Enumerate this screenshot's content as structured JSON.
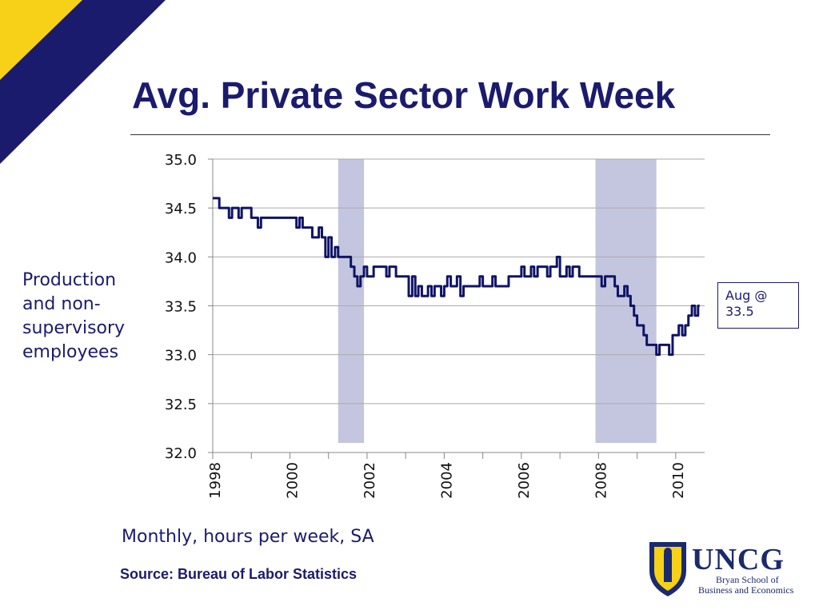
{
  "slide": {
    "title": "Avg. Private Sector Work Week",
    "side_label": "Production and non-supervisory employees",
    "subtitle": "Monthly, hours per week, SA",
    "source": "Source:  Bureau of Labor Statistics",
    "callout": "Aug @ 33.5"
  },
  "logo": {
    "name": "UNCG",
    "line1": "Bryan School of",
    "line2": "Business and Economics"
  },
  "colors": {
    "title": "#1b1b6e",
    "line": "#0f1466",
    "recession_band": "#c4c6df",
    "corner_navy": "#1b1b6e",
    "corner_gold": "#f7d117",
    "grid": "#aaaaaa"
  },
  "chart_data": {
    "type": "line",
    "title": "",
    "xlabel": "",
    "ylabel": "",
    "ylim": [
      32.0,
      35.0
    ],
    "yticks": [
      "32.0",
      "32.5",
      "33.0",
      "33.5",
      "34.0",
      "34.5",
      "35.0"
    ],
    "xlim": [
      1998.0,
      2010.75
    ],
    "xticks": [
      "1998",
      "2000",
      "2002",
      "2004",
      "2006",
      "2008",
      "2010"
    ],
    "grid": true,
    "recession_bands": [
      {
        "start": 2001.25,
        "end": 2001.92
      },
      {
        "start": 2007.92,
        "end": 2009.5
      }
    ],
    "series": [
      {
        "x": [
          1998.0,
          1998.08,
          1998.17,
          1998.25,
          1998.33,
          1998.42,
          1998.5,
          1998.58,
          1998.67,
          1998.75,
          1998.83,
          1998.92,
          1999.0,
          1999.08,
          1999.17,
          1999.25,
          1999.33,
          1999.42,
          1999.5,
          1999.58,
          1999.67,
          1999.75,
          1999.83,
          1999.92,
          2000.0,
          2000.08,
          2000.17,
          2000.25,
          2000.33,
          2000.42,
          2000.5,
          2000.58,
          2000.67,
          2000.75,
          2000.83,
          2000.92,
          2001.0,
          2001.08,
          2001.17,
          2001.25,
          2001.33,
          2001.42,
          2001.5,
          2001.58,
          2001.67,
          2001.75,
          2001.83,
          2001.92,
          2002.0,
          2002.08,
          2002.17,
          2002.25,
          2002.33,
          2002.42,
          2002.5,
          2002.58,
          2002.67,
          2002.75,
          2002.83,
          2002.92,
          2003.0,
          2003.08,
          2003.17,
          2003.25,
          2003.33,
          2003.42,
          2003.5,
          2003.58,
          2003.67,
          2003.75,
          2003.83,
          2003.92,
          2004.0,
          2004.08,
          2004.17,
          2004.25,
          2004.33,
          2004.42,
          2004.5,
          2004.58,
          2004.67,
          2004.75,
          2004.83,
          2004.92,
          2005.0,
          2005.08,
          2005.17,
          2005.25,
          2005.33,
          2005.42,
          2005.5,
          2005.58,
          2005.67,
          2005.75,
          2005.83,
          2005.92,
          2006.0,
          2006.08,
          2006.17,
          2006.25,
          2006.33,
          2006.42,
          2006.5,
          2006.58,
          2006.67,
          2006.75,
          2006.83,
          2006.92,
          2007.0,
          2007.08,
          2007.17,
          2007.25,
          2007.33,
          2007.42,
          2007.5,
          2007.58,
          2007.67,
          2007.75,
          2007.83,
          2007.92,
          2008.0,
          2008.08,
          2008.17,
          2008.25,
          2008.33,
          2008.42,
          2008.5,
          2008.58,
          2008.67,
          2008.75,
          2008.83,
          2008.92,
          2009.0,
          2009.08,
          2009.17,
          2009.25,
          2009.33,
          2009.42,
          2009.5,
          2009.58,
          2009.67,
          2009.75,
          2009.83,
          2009.92,
          2010.0,
          2010.08,
          2010.17,
          2010.25,
          2010.33,
          2010.42,
          2010.5,
          2010.58
        ],
        "values": [
          34.6,
          34.6,
          34.5,
          34.5,
          34.5,
          34.4,
          34.5,
          34.5,
          34.4,
          34.5,
          34.5,
          34.5,
          34.4,
          34.4,
          34.3,
          34.4,
          34.4,
          34.4,
          34.4,
          34.4,
          34.4,
          34.4,
          34.4,
          34.4,
          34.4,
          34.4,
          34.3,
          34.4,
          34.3,
          34.3,
          34.3,
          34.2,
          34.2,
          34.3,
          34.2,
          34.0,
          34.2,
          34.0,
          34.1,
          34.0,
          34.0,
          34.0,
          34.0,
          33.9,
          33.8,
          33.7,
          33.8,
          33.9,
          33.8,
          33.8,
          33.9,
          33.9,
          33.9,
          33.9,
          33.8,
          33.9,
          33.9,
          33.8,
          33.8,
          33.8,
          33.8,
          33.6,
          33.8,
          33.6,
          33.7,
          33.6,
          33.6,
          33.7,
          33.6,
          33.7,
          33.7,
          33.6,
          33.7,
          33.8,
          33.7,
          33.7,
          33.8,
          33.6,
          33.7,
          33.7,
          33.7,
          33.7,
          33.7,
          33.8,
          33.7,
          33.7,
          33.7,
          33.8,
          33.7,
          33.7,
          33.7,
          33.7,
          33.8,
          33.8,
          33.8,
          33.8,
          33.9,
          33.8,
          33.8,
          33.9,
          33.8,
          33.9,
          33.9,
          33.9,
          33.8,
          33.9,
          33.9,
          34.0,
          33.8,
          33.8,
          33.9,
          33.8,
          33.9,
          33.9,
          33.8,
          33.8,
          33.8,
          33.8,
          33.8,
          33.8,
          33.8,
          33.7,
          33.8,
          33.8,
          33.8,
          33.7,
          33.6,
          33.6,
          33.7,
          33.6,
          33.5,
          33.4,
          33.3,
          33.3,
          33.2,
          33.1,
          33.1,
          33.1,
          33.0,
          33.1,
          33.1,
          33.1,
          33.0,
          33.2,
          33.2,
          33.3,
          33.2,
          33.3,
          33.4,
          33.5,
          33.4,
          33.5
        ]
      }
    ]
  }
}
